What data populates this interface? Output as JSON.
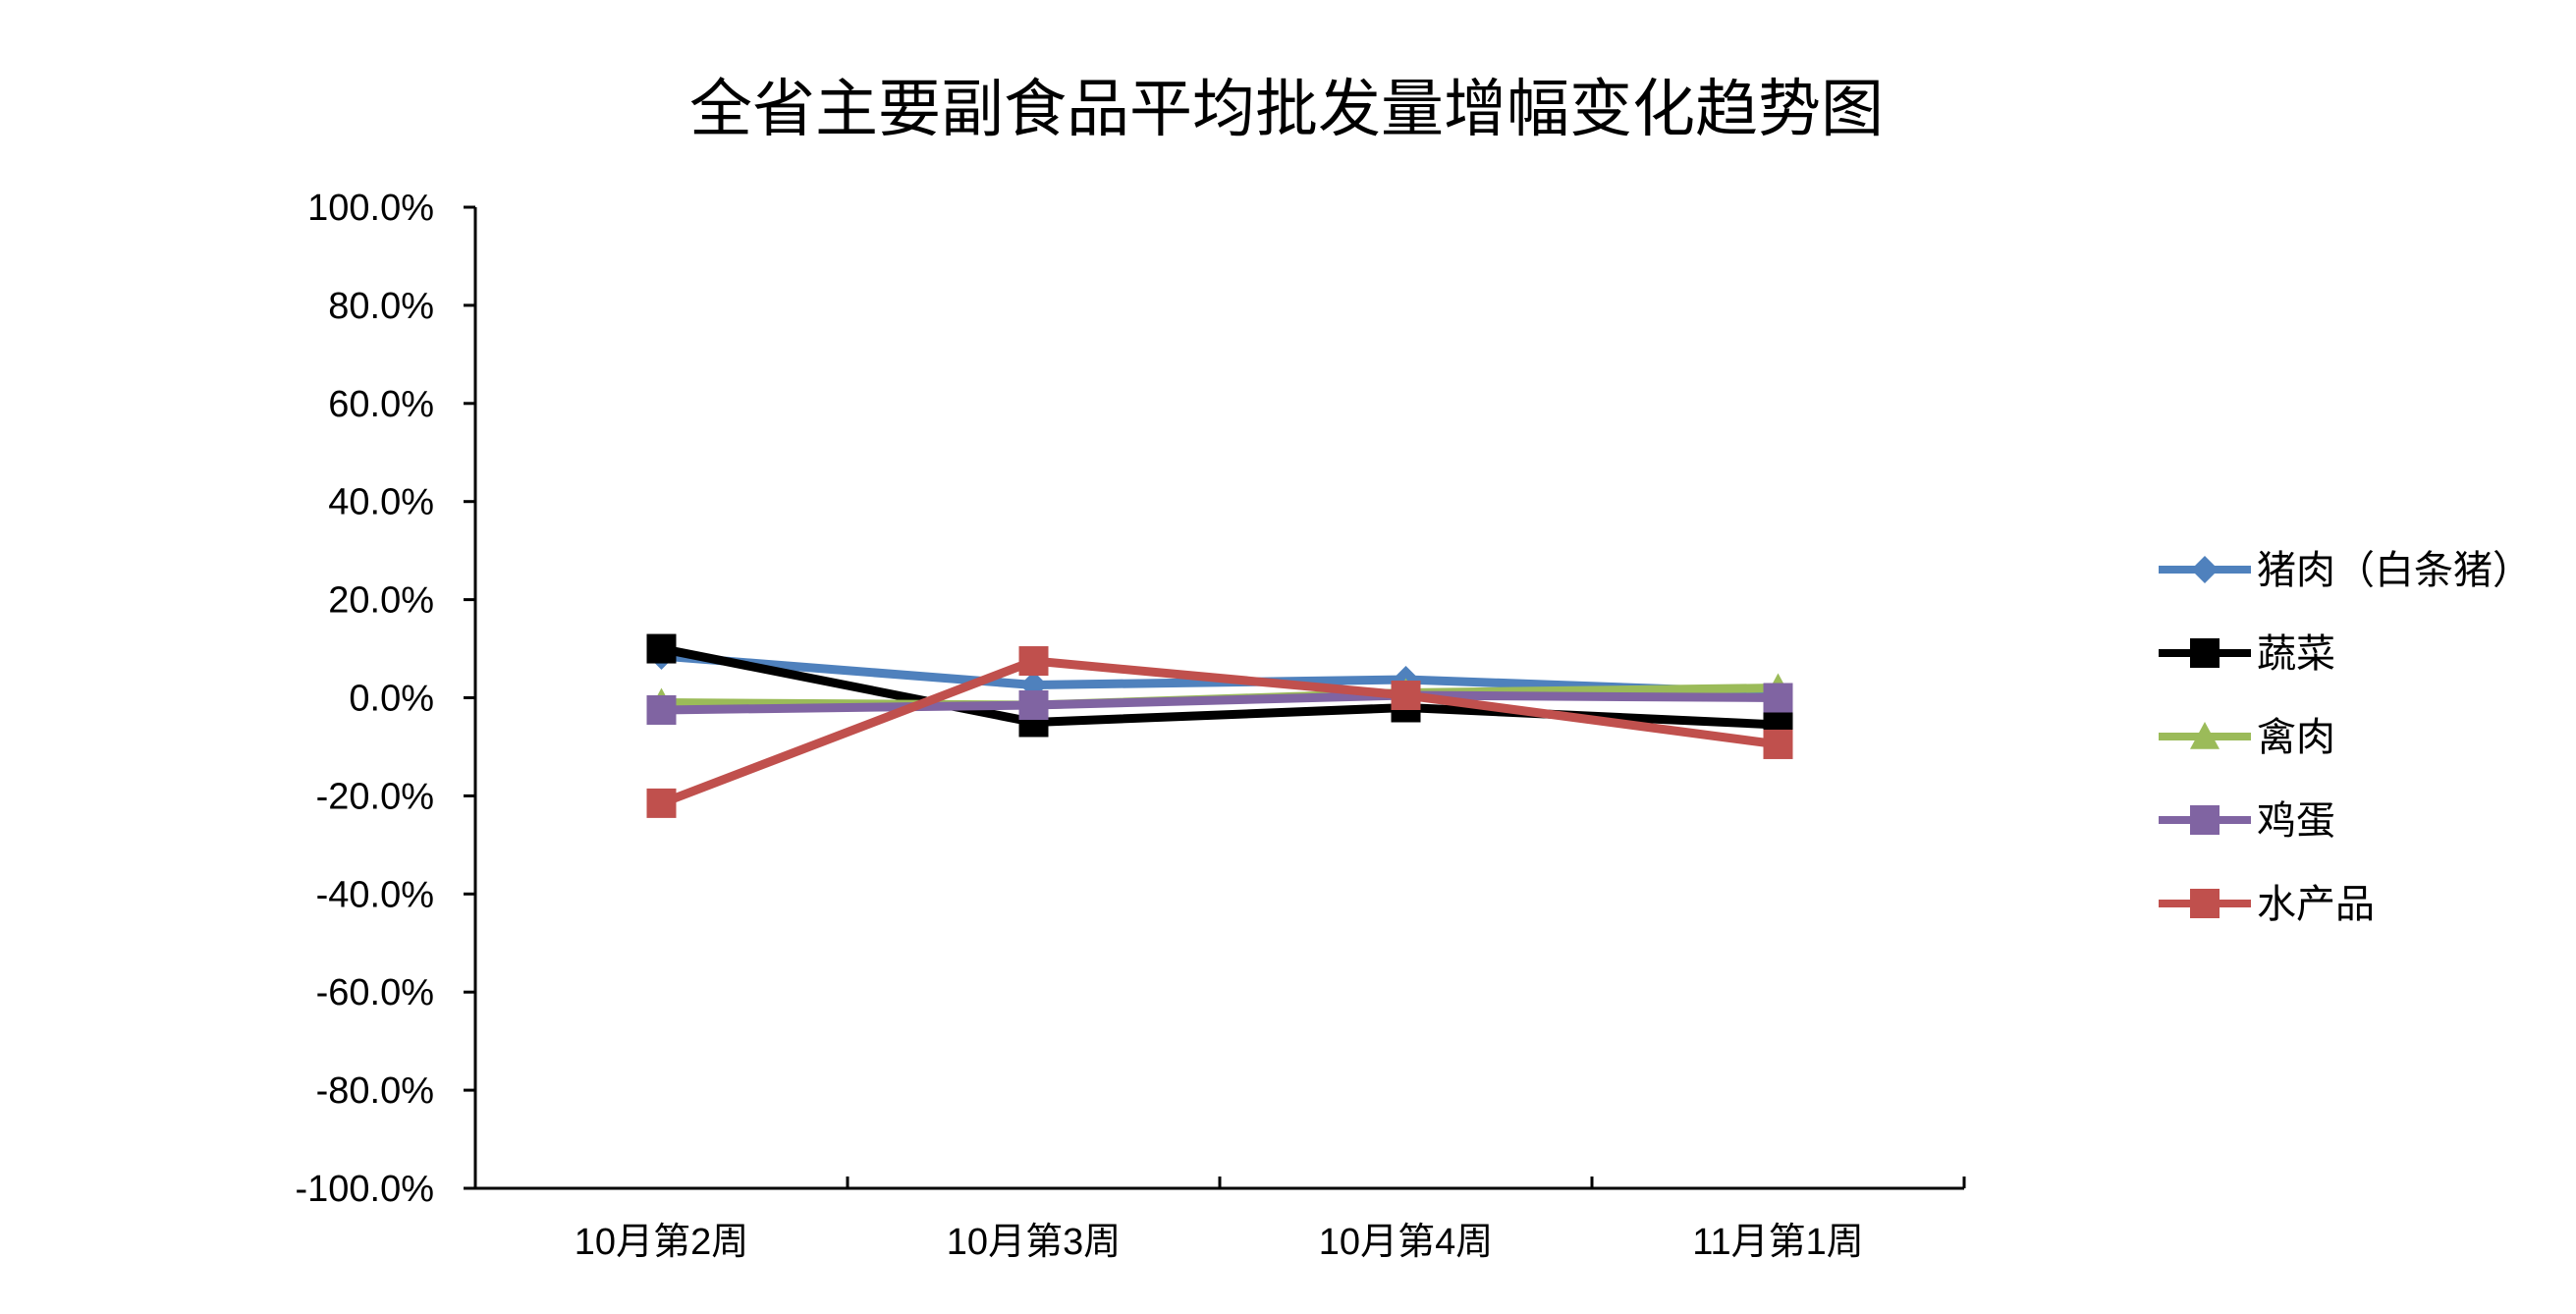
{
  "chart_data": {
    "type": "line",
    "title": "全省主要副食品平均批发量增幅变化趋势图",
    "categories": [
      "10月第2周",
      "10月第3周",
      "10月第4周",
      "11月第1周"
    ],
    "y_ticks": [
      "100.0%",
      "80.0%",
      "60.0%",
      "40.0%",
      "20.0%",
      "0.0%",
      "-20.0%",
      "-40.0%",
      "-60.0%",
      "-80.0%",
      "-100.0%"
    ],
    "ylim": [
      -100,
      100
    ],
    "y_unit": "%",
    "grid": false,
    "legend_position": "right",
    "series": [
      {
        "name": "猪肉（白条猪）",
        "color": "#4F81BD",
        "marker": "diamond",
        "values": [
          8.5,
          2.6,
          3.7,
          1.0
        ]
      },
      {
        "name": "蔬菜",
        "color": "#000000",
        "marker": "square",
        "values": [
          10.0,
          -5.0,
          -2.0,
          -5.5
        ]
      },
      {
        "name": "禽肉",
        "color": "#9BBB59",
        "marker": "triangle",
        "values": [
          -1.0,
          -1.5,
          1.0,
          2.0
        ]
      },
      {
        "name": "鸡蛋",
        "color": "#8064A2",
        "marker": "square",
        "values": [
          -2.5,
          -1.5,
          0.5,
          0.0
        ]
      },
      {
        "name": "水产品",
        "color": "#C0504D",
        "marker": "square",
        "values": [
          -21.5,
          7.5,
          0.5,
          -9.5
        ]
      }
    ]
  }
}
